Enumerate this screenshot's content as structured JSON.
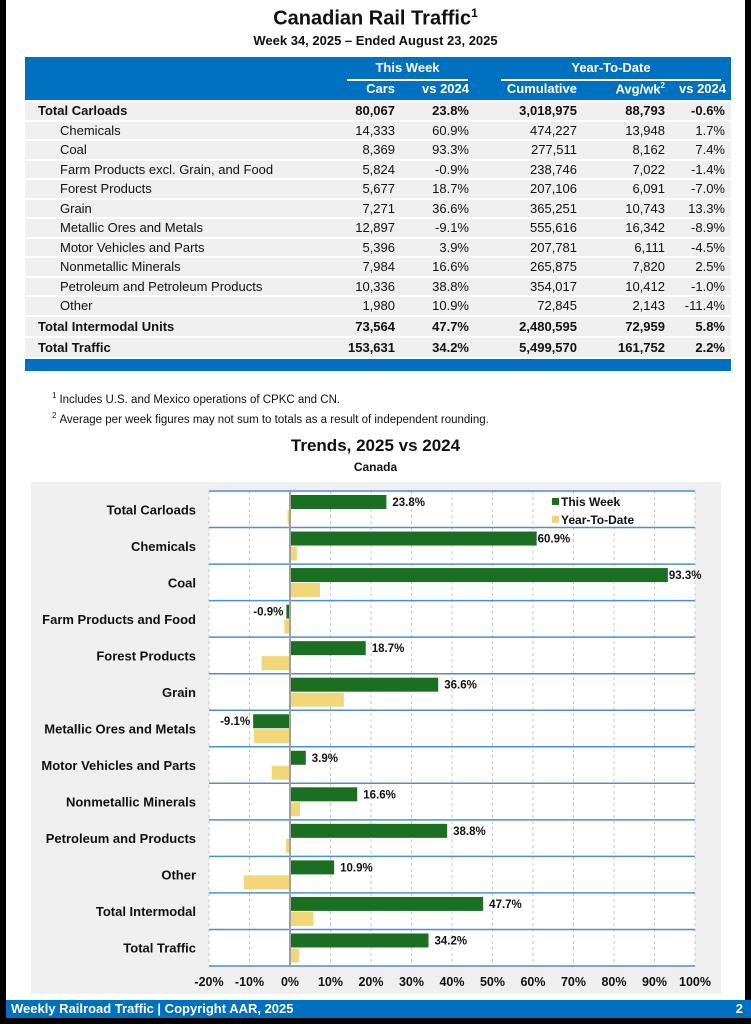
{
  "header": {
    "title": "Canadian Rail Traffic",
    "title_sup": "1",
    "subtitle": "Week 34, 2025 – Ended August 23, 2025"
  },
  "table": {
    "group_this_week": "This Week",
    "group_ytd": "Year-To-Date",
    "columns": [
      "Cars",
      "vs 2024",
      "Cumulative",
      "Avg/wk",
      "vs 2024"
    ],
    "avg_sup": "2",
    "rows": [
      {
        "name": "Total Carloads",
        "cars": "80,067",
        "vs": "23.8%",
        "vs_sign": "pos",
        "cum": "3,018,975",
        "avg": "88,793",
        "ytd_vs": "-0.6%",
        "ytd_sign": "neg",
        "type": "bold"
      },
      {
        "name": "Chemicals",
        "cars": "14,333",
        "vs": "60.9%",
        "vs_sign": "pos",
        "cum": "474,227",
        "avg": "13,948",
        "ytd_vs": "1.7%",
        "ytd_sign": "pos",
        "type": "sub"
      },
      {
        "name": "Coal",
        "cars": "8,369",
        "vs": "93.3%",
        "vs_sign": "pos",
        "cum": "277,511",
        "avg": "8,162",
        "ytd_vs": "7.4%",
        "ytd_sign": "pos",
        "type": "sub"
      },
      {
        "name": "Farm Products excl. Grain, and Food",
        "cars": "5,824",
        "vs": "-0.9%",
        "vs_sign": "neg",
        "cum": "238,746",
        "avg": "7,022",
        "ytd_vs": "-1.4%",
        "ytd_sign": "neg",
        "type": "sub"
      },
      {
        "name": "Forest Products",
        "cars": "5,677",
        "vs": "18.7%",
        "vs_sign": "pos",
        "cum": "207,106",
        "avg": "6,091",
        "ytd_vs": "-7.0%",
        "ytd_sign": "neg",
        "type": "sub"
      },
      {
        "name": "Grain",
        "cars": "7,271",
        "vs": "36.6%",
        "vs_sign": "pos",
        "cum": "365,251",
        "avg": "10,743",
        "ytd_vs": "13.3%",
        "ytd_sign": "pos",
        "type": "sub"
      },
      {
        "name": "Metallic Ores and Metals",
        "cars": "12,897",
        "vs": "-9.1%",
        "vs_sign": "neg",
        "cum": "555,616",
        "avg": "16,342",
        "ytd_vs": "-8.9%",
        "ytd_sign": "neg",
        "type": "sub"
      },
      {
        "name": "Motor Vehicles and Parts",
        "cars": "5,396",
        "vs": "3.9%",
        "vs_sign": "pos",
        "cum": "207,781",
        "avg": "6,111",
        "ytd_vs": "-4.5%",
        "ytd_sign": "neg",
        "type": "sub"
      },
      {
        "name": "Nonmetallic Minerals",
        "cars": "7,984",
        "vs": "16.6%",
        "vs_sign": "pos",
        "cum": "265,875",
        "avg": "7,820",
        "ytd_vs": "2.5%",
        "ytd_sign": "pos",
        "type": "sub"
      },
      {
        "name": "Petroleum and Petroleum Products",
        "cars": "10,336",
        "vs": "38.8%",
        "vs_sign": "pos",
        "cum": "354,017",
        "avg": "10,412",
        "ytd_vs": "-1.0%",
        "ytd_sign": "neg",
        "type": "sub"
      },
      {
        "name": "Other",
        "cars": "1,980",
        "vs": "10.9%",
        "vs_sign": "pos",
        "cum": "72,845",
        "avg": "2,143",
        "ytd_vs": "-11.4%",
        "ytd_sign": "neg",
        "type": "sub"
      },
      {
        "name": "Total Intermodal Units",
        "cars": "73,564",
        "vs": "47.7%",
        "vs_sign": "pos",
        "cum": "2,480,595",
        "avg": "72,959",
        "ytd_vs": "5.8%",
        "ytd_sign": "pos",
        "type": "bold total"
      },
      {
        "name": "Total Traffic",
        "cars": "153,631",
        "vs": "34.2%",
        "vs_sign": "pos",
        "cum": "5,499,570",
        "avg": "161,752",
        "ytd_vs": "2.2%",
        "ytd_sign": "pos",
        "type": "bold total"
      }
    ]
  },
  "notes": [
    {
      "sup": "1",
      "text": "Includes U.S. and Mexico operations of CPKC and CN."
    },
    {
      "sup": "2",
      "text": "Average per week figures may not sum to totals as a result of independent rounding."
    }
  ],
  "colors": {
    "brand_blue": "#0070c0",
    "positive": "#2e7d32",
    "negative": "#e00000",
    "this_week_bar": "#1a7020",
    "ytd_bar": "#f2d67a",
    "row_line": "#4a90d9"
  },
  "chart_data": {
    "type": "bar",
    "orientation": "horizontal",
    "title": "Trends, 2025 vs 2024",
    "subtitle": "Canada",
    "categories": [
      "Total Carloads",
      "Chemicals",
      "Coal",
      "Farm Products and Food",
      "Forest Products",
      "Grain",
      "Metallic Ores and Metals",
      "Motor Vehicles and Parts",
      "Nonmetallic Minerals",
      "Petroleum and Products",
      "Other",
      "Total Intermodal",
      "Total Traffic"
    ],
    "series": [
      {
        "name": "This Week",
        "values": [
          23.8,
          60.9,
          93.3,
          -0.9,
          18.7,
          36.6,
          -9.1,
          3.9,
          16.6,
          38.8,
          10.9,
          47.7,
          34.2
        ],
        "labels": [
          "23.8%",
          "60.9%",
          "93.3%",
          "-0.9%",
          "18.7%",
          "36.6%",
          "-9.1%",
          "3.9%",
          "16.6%",
          "38.8%",
          "10.9%",
          "47.7%",
          "34.2%"
        ]
      },
      {
        "name": "Year-To-Date",
        "values": [
          -0.6,
          1.7,
          7.4,
          -1.4,
          -7.0,
          13.3,
          -8.9,
          -4.5,
          2.5,
          -1.0,
          -11.4,
          5.8,
          2.2
        ]
      }
    ],
    "xlim": [
      -20,
      100
    ],
    "xticks": [
      "-20%",
      "-10%",
      "0%",
      "10%",
      "20%",
      "30%",
      "40%",
      "50%",
      "60%",
      "70%",
      "80%",
      "90%",
      "100%"
    ],
    "xlabel": "",
    "ylabel": "",
    "grid": true,
    "legend": "top-right"
  },
  "footer": {
    "left": "Weekly Railroad Traffic | Copyright AAR, 2025",
    "page": "2"
  }
}
